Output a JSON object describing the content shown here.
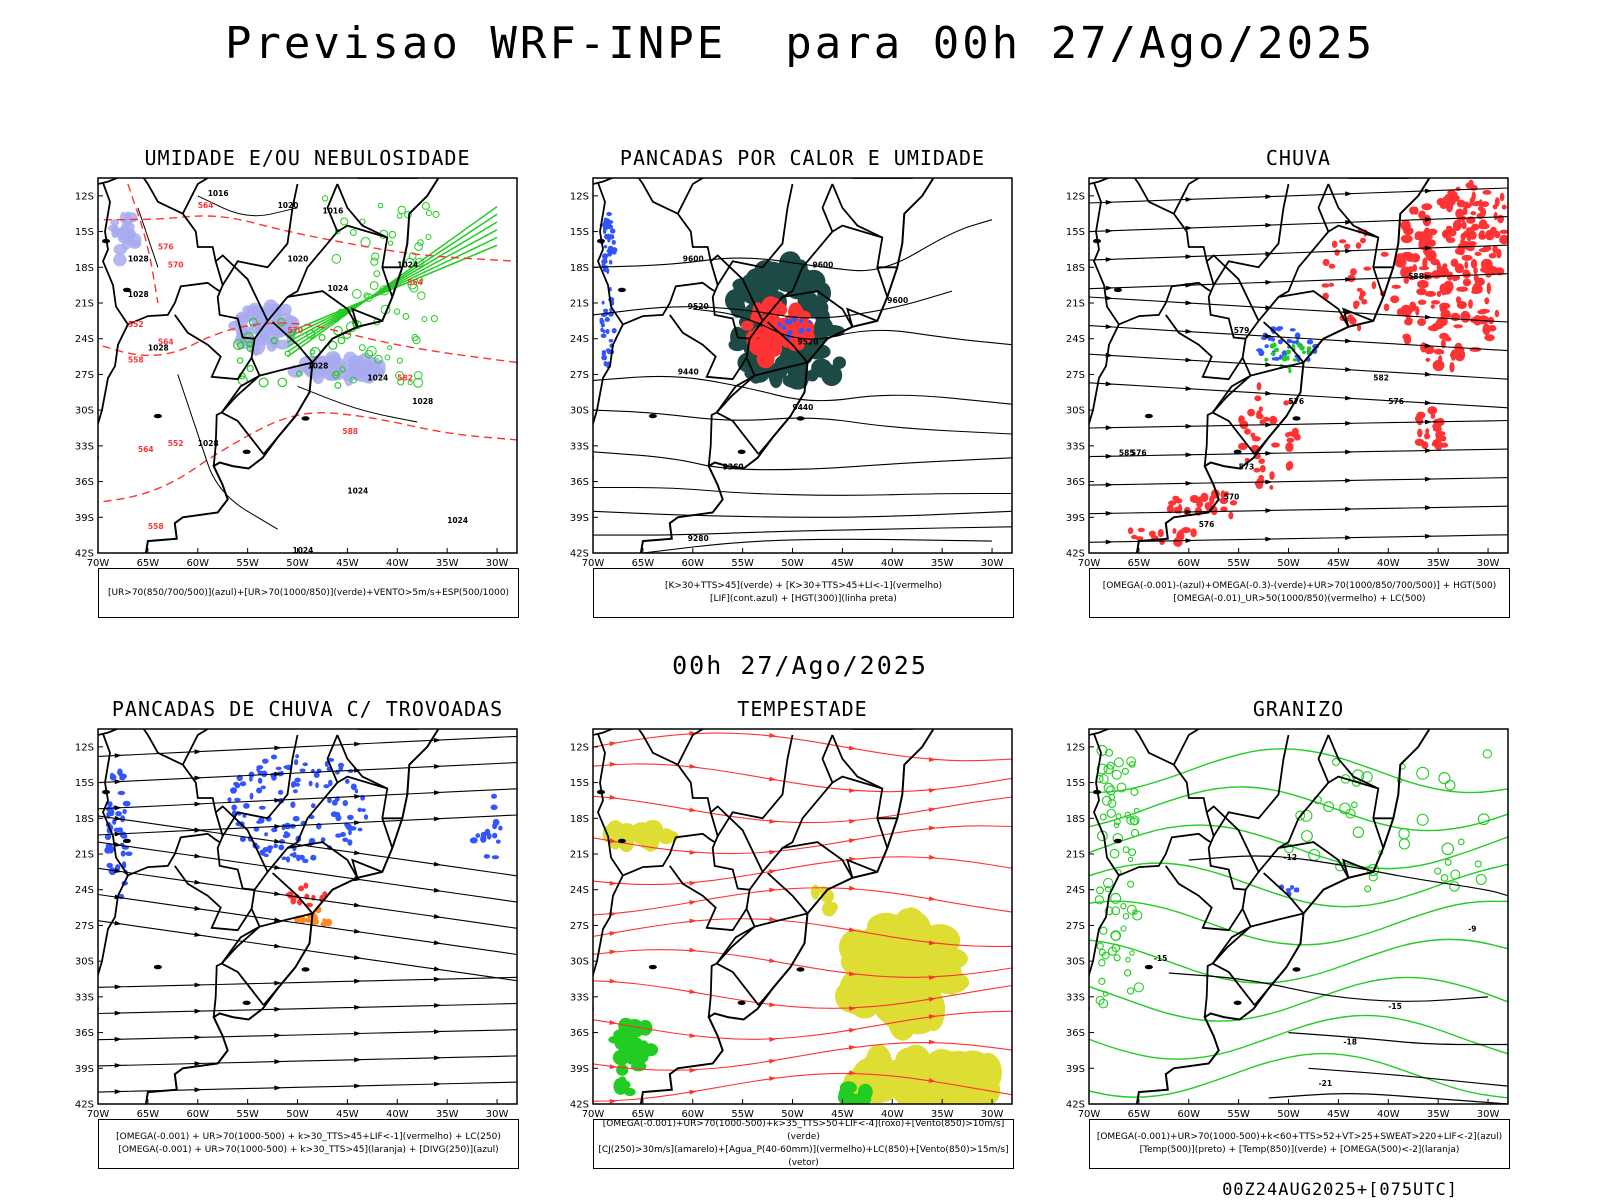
{
  "title": "Previsao WRF-INPE  para 00h 27/Ago/2025",
  "middle_date": "00h 27/Ago/2025",
  "footer": "00Z24AUG2025+[075UTC]",
  "axes": {
    "lat_ticks": [
      "12S",
      "15S",
      "18S",
      "21S",
      "24S",
      "27S",
      "30S",
      "33S",
      "36S",
      "39S",
      "42S"
    ],
    "lon_ticks": [
      "70W",
      "65W",
      "60W",
      "55W",
      "50W",
      "45W",
      "40W",
      "35W",
      "30W"
    ]
  },
  "panels": [
    {
      "id": "umidade",
      "title": "UMIDADE E/OU NEBULOSIDADE",
      "legend": [
        "[UR>70(850/700/500)](azul)+[UR>70(1000/850)](verde)+VENTO>5m/s+ESP(500/1000)"
      ],
      "contour_labels": [
        "1016",
        "1020",
        "1016",
        "1020",
        "1024",
        "1024",
        "1028",
        "1028",
        "1028",
        "1028",
        "1024",
        "1028",
        "1028",
        "1024",
        "1024",
        "1024",
        "564",
        "570",
        "576",
        "570",
        "564",
        "582",
        "588",
        "552",
        "558",
        "564",
        "552",
        "564",
        "558"
      ]
    },
    {
      "id": "pancadas-calor",
      "title": "PANCADAS POR CALOR E UMIDADE",
      "legend": [
        "[K>30+TTS>45](verde) + [K>30+TTS>45+LI<-1](vermelho)",
        "[LIF](cont.azul) + [HGT(300)](linha preta)"
      ],
      "contour_labels": [
        "9600",
        "9600",
        "9520",
        "9520",
        "9440",
        "9440",
        "9360",
        "9360",
        "9280",
        "9600"
      ]
    },
    {
      "id": "chuva",
      "title": "CHUVA",
      "legend": [
        "[OMEGA(-0.001)-(azul)+OMEGA(-0.3)-(verde)+UR>70(1000/850/700/500)] + HGT(500)",
        "[OMEGA(-0.01)_UR>50(1000/850)(vermelho) + LC(500)"
      ],
      "contour_labels": [
        "588",
        "579",
        "582",
        "576",
        "576",
        "576",
        "573",
        "570",
        "576",
        "585"
      ]
    },
    {
      "id": "trovoadas",
      "title": "PANCADAS DE CHUVA C/ TROVOADAS",
      "legend": [
        "[OMEGA(-0.001) + UR>70(1000-500) + k>30_TTS>45+LIF<-1](vermelho) + LC(250)",
        "[OMEGA(-0.001) + UR>70(1000-500) + k>30_TTS>45](laranja) + [DIVG(250)](azul)"
      ],
      "contour_labels": []
    },
    {
      "id": "tempestade",
      "title": "TEMPESTADE",
      "legend": [
        "[OMEGA(-0.001)+UR>70(1000-500)+k>35_TTS>50+LIF<-4](roxo)+[Vento(850)>10m/s](verde)",
        "[CJ(250)>30m/s](amarelo)+[Agua_P(40-60mm)](vermelho)+LC(850)+[Vento(850)>15m/s](vetor)"
      ],
      "contour_labels": []
    },
    {
      "id": "granizo",
      "title": "GRANIZO",
      "legend": [
        "[OMEGA(-0.001)+UR>70(1000-500)+k<60+TTS>52+VT>25+SWEAT>220+LIF<-2](azul)",
        "[Temp(500)](preto) + [Temp(850)](verde) + [OMEGA(500)<-2](laranja)"
      ],
      "contour_labels": [
        "-12",
        "-9",
        "-15",
        "-15",
        "-18",
        "-21"
      ]
    }
  ],
  "colors": {
    "blue": "#3355ff",
    "green": "#22cc22",
    "red": "#ff3333",
    "orange": "#ff8822",
    "yellow": "#dddd33",
    "darkgreen": "#1e4a46",
    "lavender": "#a8aaee"
  }
}
